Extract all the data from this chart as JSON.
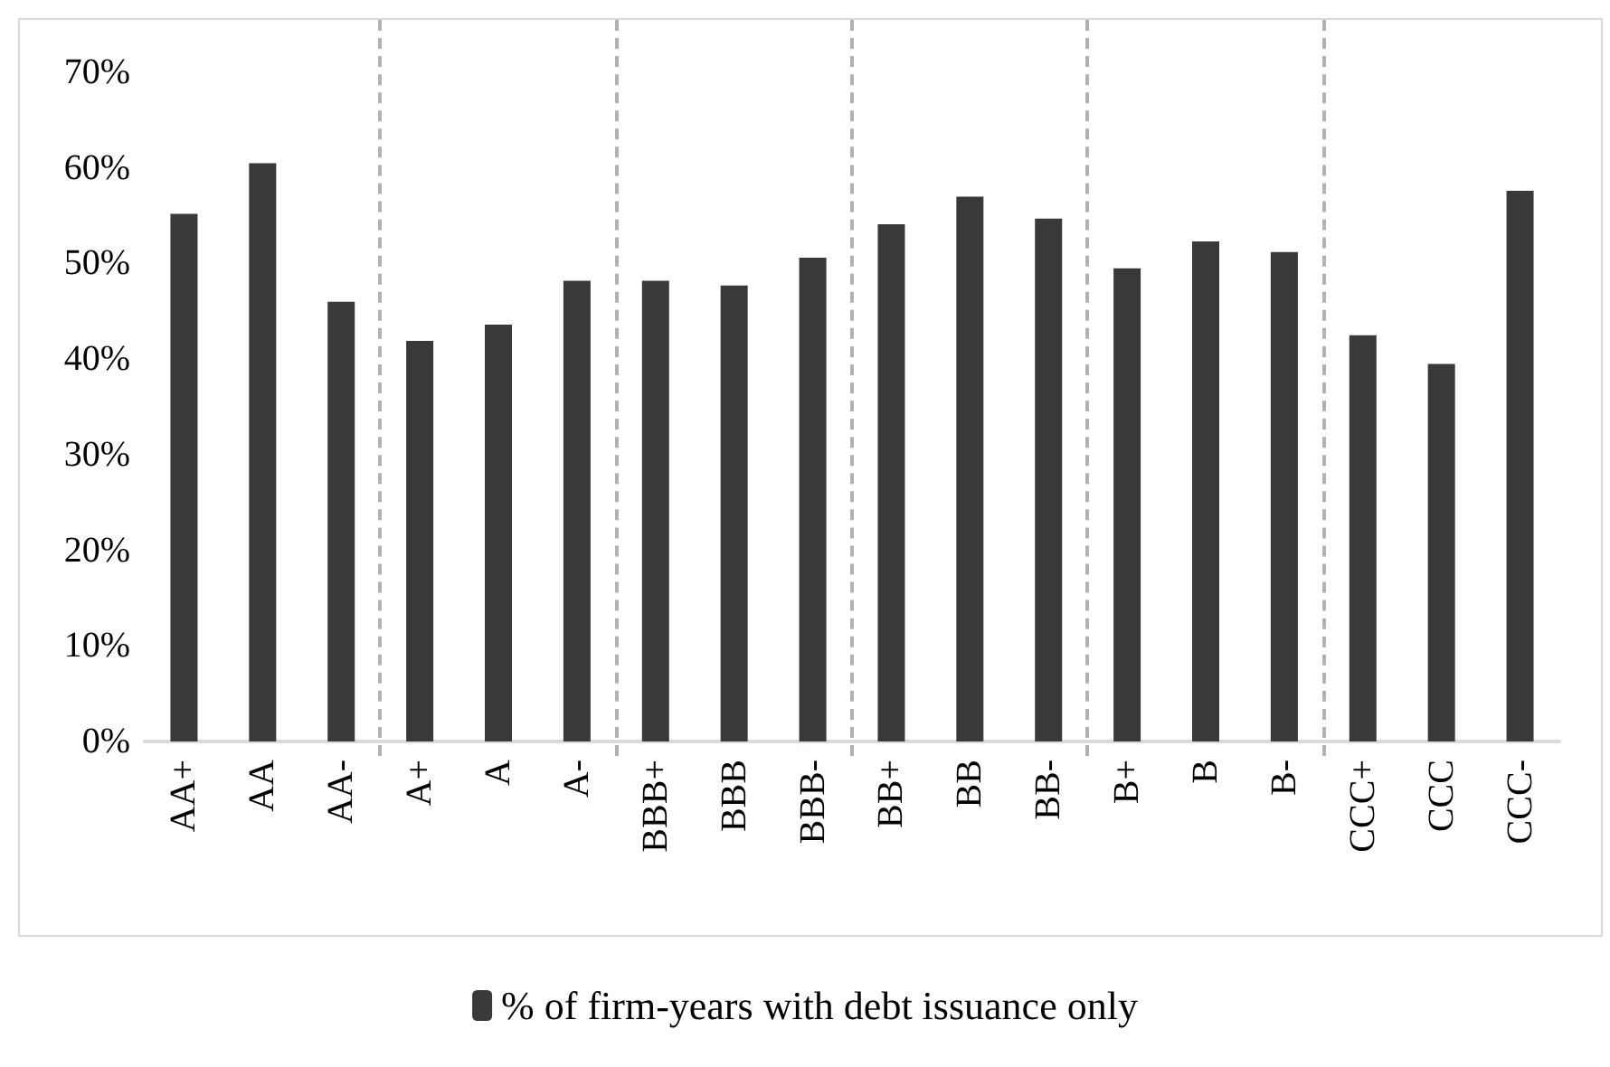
{
  "chart_data": {
    "type": "bar",
    "categories": [
      "AA+",
      "AA",
      "AA-",
      "A+",
      "A",
      "A-",
      "BBB+",
      "BBB",
      "BBB-",
      "BB+",
      "BB",
      "BB-",
      "B+",
      "B",
      "B-",
      "CCC+",
      "CCC",
      "CCC-"
    ],
    "series": [
      {
        "name": "% of firm-years with debt issuance only",
        "color": "#3a3937",
        "values": [
          55.2,
          60.5,
          46.0,
          41.9,
          43.6,
          48.2,
          48.2,
          47.7,
          50.6,
          54.1,
          57.0,
          54.7,
          49.5,
          52.3,
          51.2,
          42.5,
          39.5,
          57.6
        ]
      }
    ],
    "ylim": [
      0,
      70
    ],
    "yticks": [
      {
        "value": 0,
        "label": "0%"
      },
      {
        "value": 10,
        "label": "10%"
      },
      {
        "value": 20,
        "label": "20%"
      },
      {
        "value": 30,
        "label": "30%"
      },
      {
        "value": 40,
        "label": "40%"
      },
      {
        "value": 50,
        "label": "50%"
      },
      {
        "value": 60,
        "label": "60%"
      },
      {
        "value": 70,
        "label": "70%"
      }
    ],
    "grid": false,
    "legend": "bottom"
  }
}
